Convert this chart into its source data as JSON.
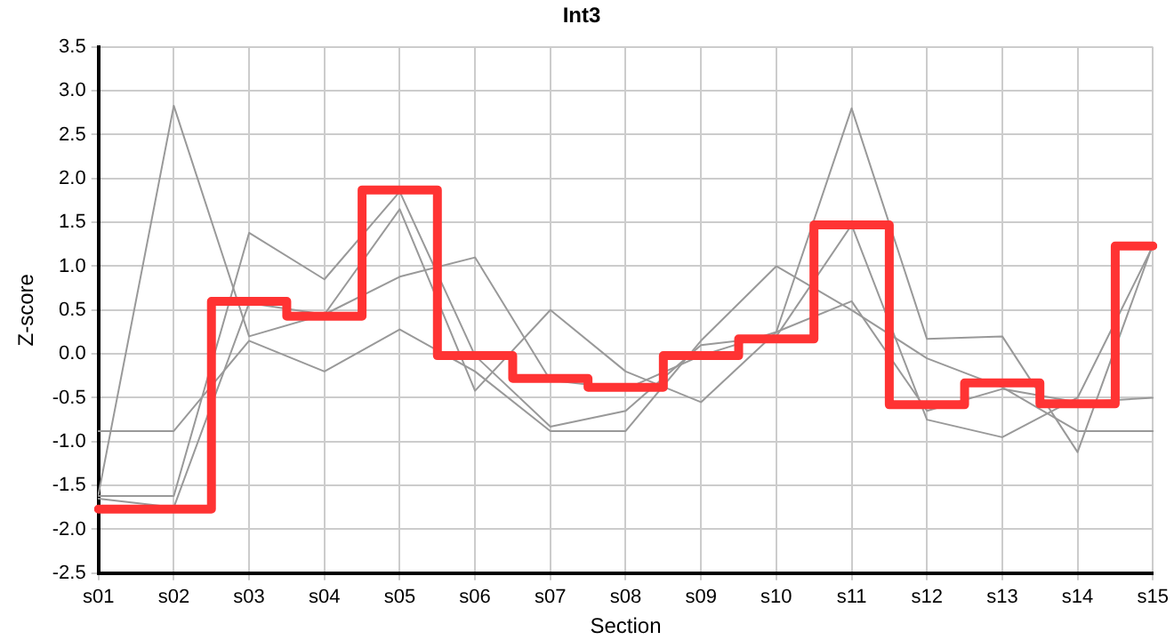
{
  "chart_data": {
    "type": "line",
    "title": "Int3",
    "xlabel": "Section",
    "ylabel": "Z-score",
    "categories": [
      "s01",
      "s02",
      "s03",
      "s04",
      "s05",
      "s06",
      "s07",
      "s08",
      "s09",
      "s10",
      "s11",
      "s12",
      "s13",
      "s14",
      "s15"
    ],
    "series": [
      {
        "color": "#999999",
        "values": [
          -1.6,
          2.83,
          0.2,
          0.45,
          1.65,
          -0.42,
          0.5,
          -0.2,
          -0.55,
          0.25,
          2.8,
          0.17,
          0.2,
          -1.12,
          1.25
        ]
      },
      {
        "color": "#999999",
        "values": [
          -0.88,
          -0.88,
          0.15,
          -0.2,
          0.28,
          -0.2,
          -0.88,
          -0.88,
          0.15,
          1.0,
          0.5,
          -0.05,
          -0.38,
          -0.88,
          -0.88
        ]
      },
      {
        "color": "#999999",
        "values": [
          -1.62,
          -1.62,
          1.38,
          0.85,
          1.85,
          -0.02,
          -0.83,
          -0.65,
          0.1,
          0.2,
          1.47,
          -0.75,
          -0.95,
          -0.5,
          1.23
        ]
      },
      {
        "color": "#999999",
        "values": [
          -1.65,
          -1.75,
          0.58,
          0.45,
          0.88,
          1.1,
          -0.3,
          -0.4,
          -0.02,
          0.25,
          0.6,
          -0.65,
          -0.4,
          -0.55,
          -0.5
        ]
      },
      {
        "type": "step",
        "color": "#ff3333",
        "values": [
          -1.77,
          -1.77,
          0.6,
          0.43,
          1.87,
          -0.02,
          -0.28,
          -0.38,
          -0.02,
          0.17,
          1.47,
          -0.58,
          -0.33,
          -0.57,
          1.23
        ]
      }
    ],
    "ylim": [
      -2.5,
      3.5
    ],
    "yticks": [
      -2.5,
      {
        "value": -2,
        "label": "-2.0"
      },
      -1.5,
      {
        "value": -1,
        "label": "-1.0"
      },
      -0.5,
      {
        "value": 0,
        "label": "0.0"
      },
      0.5,
      {
        "value": 1,
        "label": "1.0"
      },
      1.5,
      {
        "value": 2,
        "label": "2.0"
      },
      2.5,
      {
        "value": 3,
        "label": "3.0"
      },
      3.5
    ],
    "grid": true,
    "legend": false,
    "marker": "none",
    "line_style": "solid"
  }
}
